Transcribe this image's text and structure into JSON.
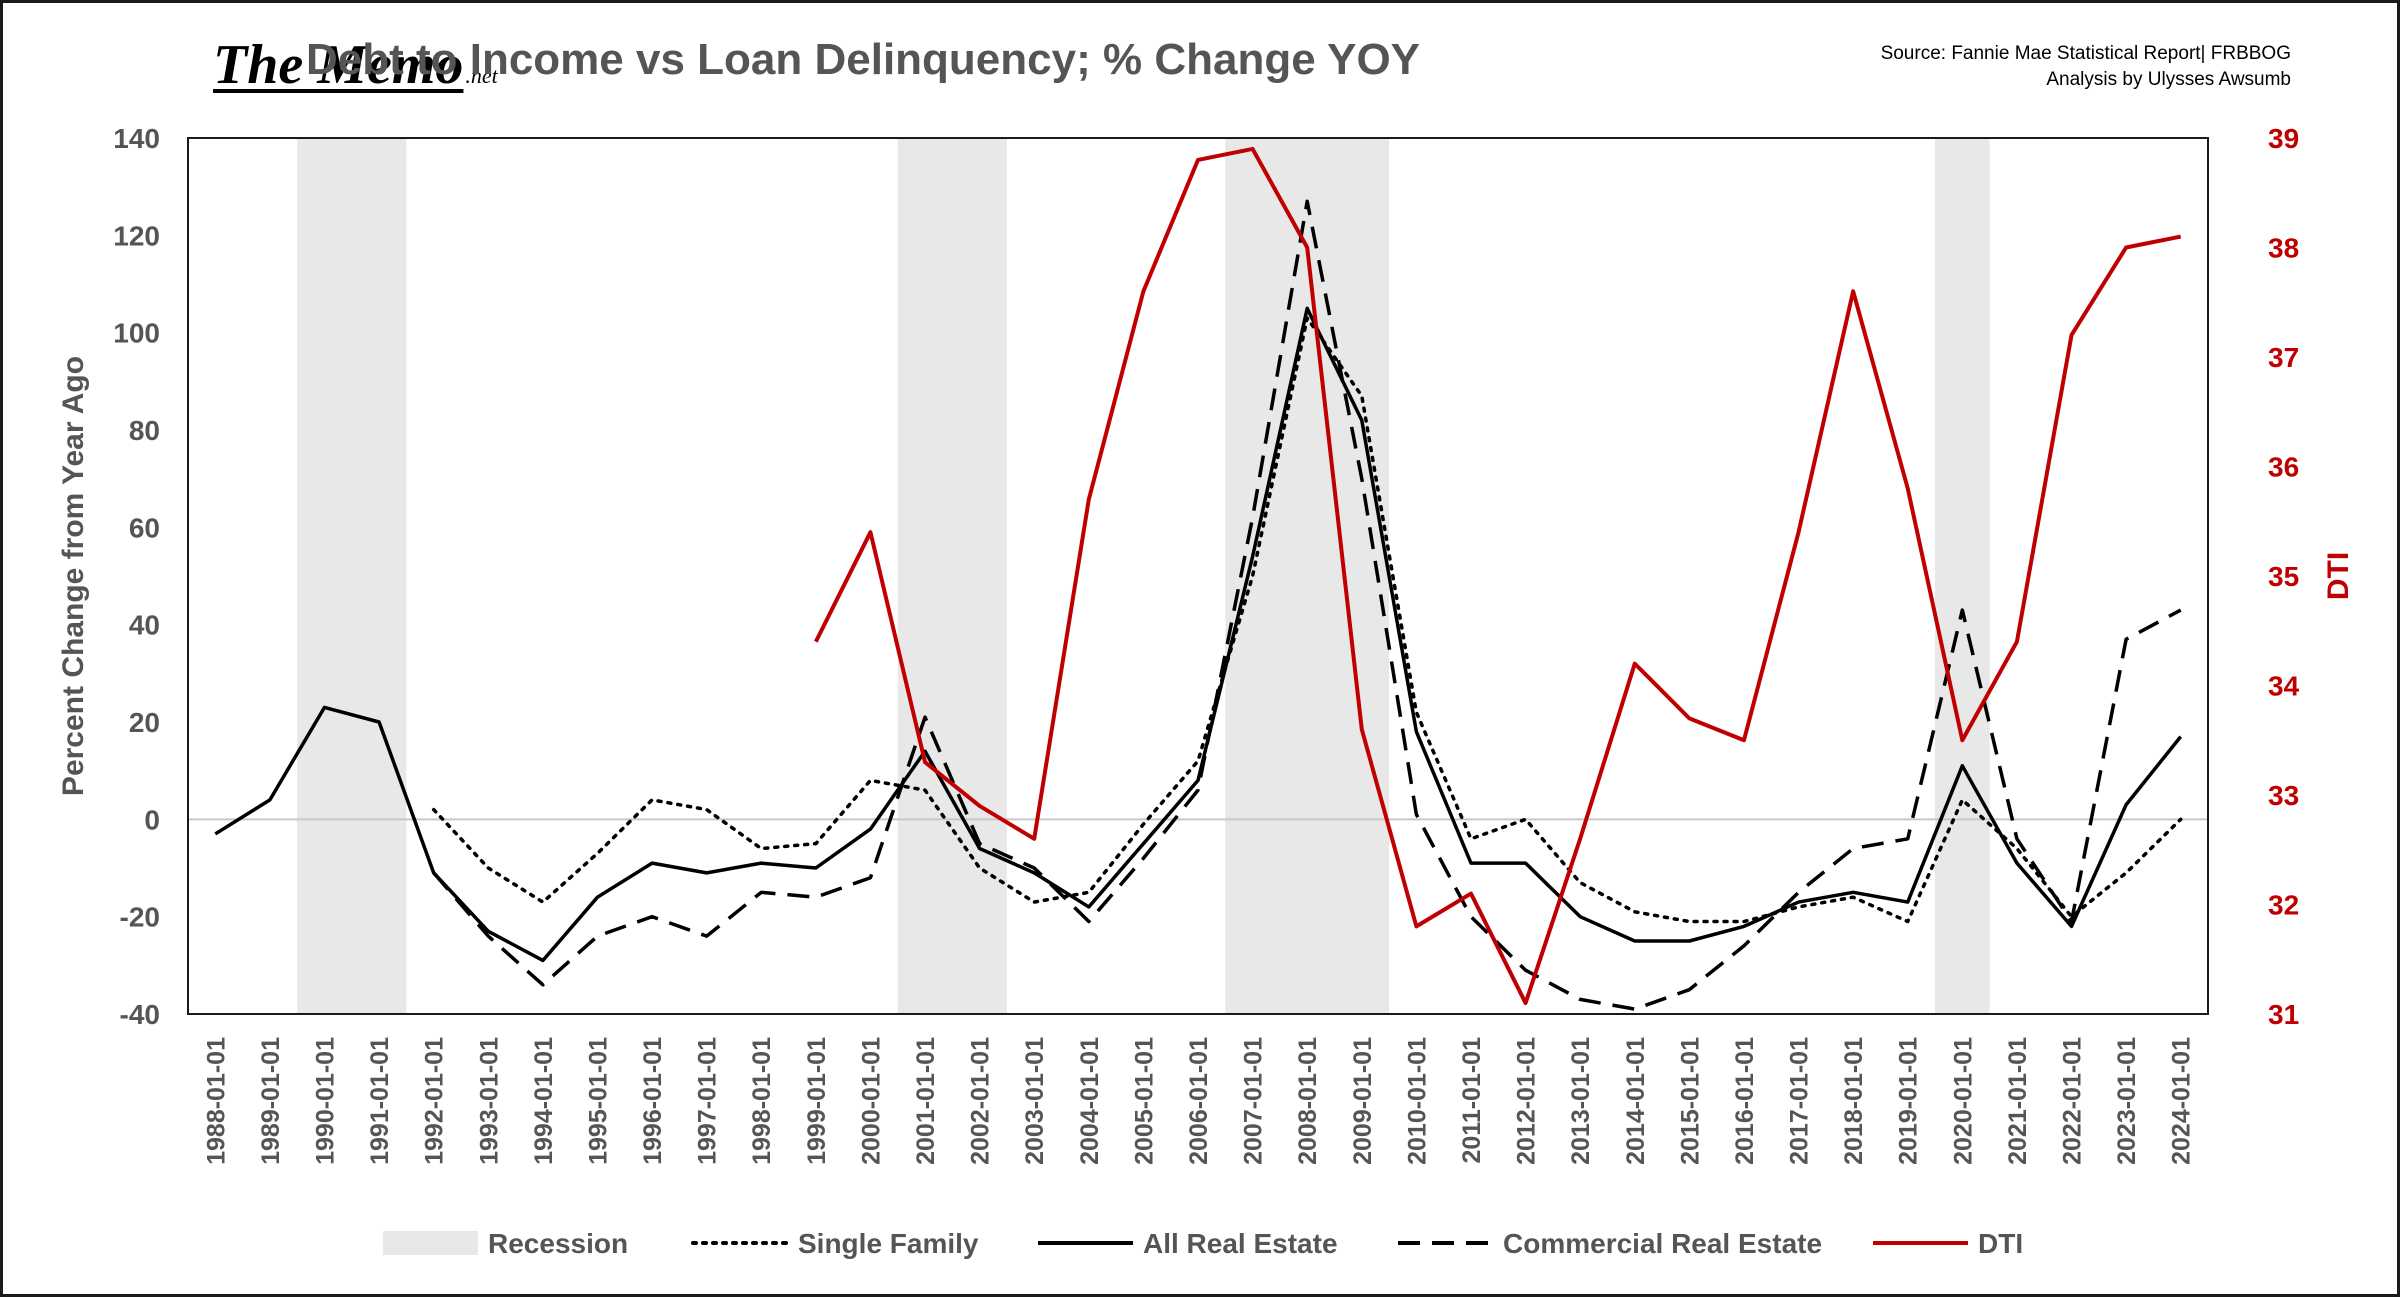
{
  "brand": {
    "main": "The Memo",
    "sub": ".net"
  },
  "title": "Debt to Income vs Loan Delinquency; % Change YOY",
  "source": {
    "line1": "Source: Fannie Mae Statistical Report| FRBBOG",
    "line2": "Analysis by Ulysses Awsumb"
  },
  "chart_data": {
    "type": "line",
    "title": "Debt to Income vs Loan Delinquency; % Change YOY",
    "x": [
      "1988-01-01",
      "1989-01-01",
      "1990-01-01",
      "1991-01-01",
      "1992-01-01",
      "1993-01-01",
      "1994-01-01",
      "1995-01-01",
      "1996-01-01",
      "1997-01-01",
      "1998-01-01",
      "1999-01-01",
      "2000-01-01",
      "2001-01-01",
      "2002-01-01",
      "2003-01-01",
      "2004-01-01",
      "2005-01-01",
      "2006-01-01",
      "2007-01-01",
      "2008-01-01",
      "2009-01-01",
      "2010-01-01",
      "2011-01-01",
      "2012-01-01",
      "2013-01-01",
      "2014-01-01",
      "2015-01-01",
      "2016-01-01",
      "2017-01-01",
      "2018-01-01",
      "2019-01-01",
      "2020-01-01",
      "2021-01-01",
      "2022-01-01",
      "2023-01-01",
      "2024-01-01"
    ],
    "ylabel": "Percent Change from Year Ago",
    "ylim": [
      -40,
      140
    ],
    "yticks": [
      -40,
      -20,
      0,
      20,
      40,
      60,
      80,
      100,
      120,
      140
    ],
    "y2label": "DTI",
    "y2lim": [
      31,
      39
    ],
    "y2ticks": [
      31,
      32,
      33,
      34,
      35,
      36,
      37,
      38,
      39
    ],
    "recessions": [
      [
        "1990-01-01",
        "1991-01-01"
      ],
      [
        "2001-01-01",
        "2002-01-01"
      ],
      [
        "2007-01-01",
        "2009-01-01"
      ],
      [
        "2020-01-01",
        "2020-01-01"
      ]
    ],
    "legend": [
      "Recession",
      "Single Family",
      "All Real Estate",
      "Commercial Real Estate",
      "DTI"
    ],
    "legend_position": "bottom",
    "series": [
      {
        "name": "Single Family",
        "axis": "left",
        "style": "dotted",
        "color": "#000000",
        "values": [
          null,
          null,
          null,
          null,
          2,
          -10,
          -17,
          -7,
          4,
          2,
          -6,
          -5,
          8,
          6,
          -10,
          -17,
          -15,
          -1,
          12,
          50,
          103,
          87,
          22,
          -4,
          0,
          -13,
          -19,
          -21,
          -21,
          -18,
          -16,
          -21,
          4,
          -6,
          -20,
          -11,
          0
        ]
      },
      {
        "name": "All Real Estate",
        "axis": "left",
        "style": "solid",
        "color": "#000000",
        "values": [
          -3,
          4,
          23,
          20,
          -11,
          -23,
          -29,
          -16,
          -9,
          -11,
          -9,
          -10,
          -2,
          14,
          -6,
          -11,
          -18,
          -5,
          8,
          54,
          105,
          82,
          18,
          -9,
          -9,
          -20,
          -25,
          -25,
          -22,
          -17,
          -15,
          -17,
          11,
          -9,
          -22,
          3,
          17
        ]
      },
      {
        "name": "Commercial Real Estate",
        "axis": "left",
        "style": "dashed",
        "color": "#000000",
        "values": [
          null,
          null,
          null,
          null,
          -11,
          -24,
          -34,
          -24,
          -20,
          -24,
          -15,
          -16,
          -12,
          21,
          -5,
          -10,
          -21,
          -8,
          6,
          62,
          127,
          70,
          1,
          -20,
          -31,
          -37,
          -39,
          -35,
          -26,
          -15,
          -6,
          -4,
          43,
          -4,
          -21,
          37,
          43
        ]
      },
      {
        "name": "DTI",
        "axis": "right",
        "style": "solid",
        "color": "#c00000",
        "values": [
          null,
          null,
          null,
          null,
          null,
          null,
          null,
          null,
          null,
          null,
          null,
          34.4,
          35.4,
          33.3,
          32.9,
          32.6,
          35.7,
          37.6,
          38.8,
          38.9,
          38.0,
          33.6,
          31.8,
          32.1,
          31.1,
          32.6,
          34.2,
          33.7,
          33.5,
          35.4,
          37.6,
          35.8,
          33.5,
          34.4,
          37.2,
          38.0,
          38.1
        ]
      }
    ]
  }
}
